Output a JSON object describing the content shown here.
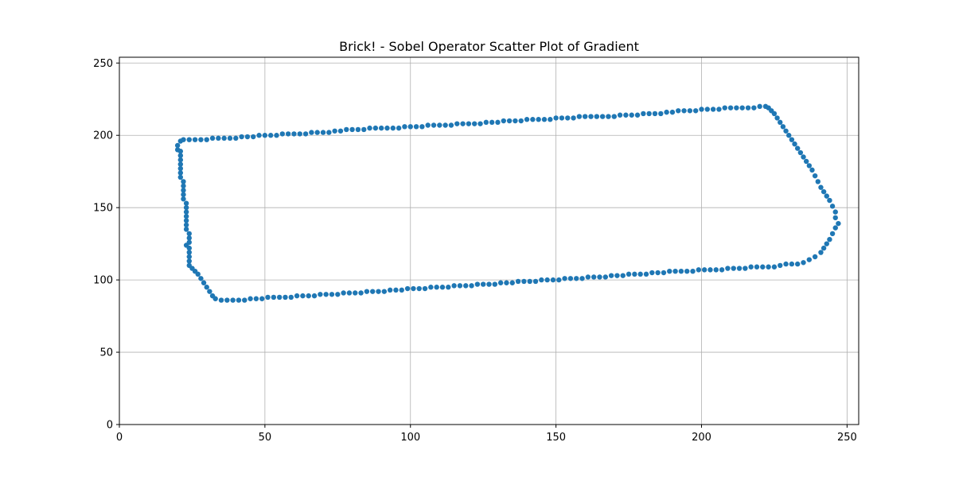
{
  "chart_data": {
    "type": "scatter",
    "title": "Brick! - Sobel Operator Scatter Plot of Gradient",
    "xlabel": "",
    "ylabel": "",
    "xlim": [
      0,
      254
    ],
    "ylim": [
      0,
      254
    ],
    "xticks": [
      0,
      50,
      100,
      150,
      200,
      250
    ],
    "yticks": [
      0,
      50,
      100,
      150,
      200,
      250
    ],
    "grid": true,
    "color": "#1f77b4",
    "series": [
      {
        "points": [
          [
            20,
            190
          ],
          [
            20,
            193
          ],
          [
            21,
            196
          ],
          [
            22,
            197
          ],
          [
            24,
            197
          ],
          [
            26,
            197
          ],
          [
            28,
            197
          ],
          [
            30,
            197
          ],
          [
            32,
            198
          ],
          [
            34,
            198
          ],
          [
            36,
            198
          ],
          [
            38,
            198
          ],
          [
            40,
            198
          ],
          [
            42,
            199
          ],
          [
            44,
            199
          ],
          [
            46,
            199
          ],
          [
            48,
            200
          ],
          [
            50,
            200
          ],
          [
            52,
            200
          ],
          [
            54,
            200
          ],
          [
            56,
            201
          ],
          [
            58,
            201
          ],
          [
            60,
            201
          ],
          [
            62,
            201
          ],
          [
            64,
            201
          ],
          [
            66,
            202
          ],
          [
            68,
            202
          ],
          [
            70,
            202
          ],
          [
            72,
            202
          ],
          [
            74,
            203
          ],
          [
            76,
            203
          ],
          [
            78,
            204
          ],
          [
            80,
            204
          ],
          [
            82,
            204
          ],
          [
            84,
            204
          ],
          [
            86,
            205
          ],
          [
            88,
            205
          ],
          [
            90,
            205
          ],
          [
            92,
            205
          ],
          [
            94,
            205
          ],
          [
            96,
            205
          ],
          [
            98,
            206
          ],
          [
            100,
            206
          ],
          [
            102,
            206
          ],
          [
            104,
            206
          ],
          [
            106,
            207
          ],
          [
            108,
            207
          ],
          [
            110,
            207
          ],
          [
            112,
            207
          ],
          [
            114,
            207
          ],
          [
            116,
            208
          ],
          [
            118,
            208
          ],
          [
            120,
            208
          ],
          [
            122,
            208
          ],
          [
            124,
            208
          ],
          [
            126,
            209
          ],
          [
            128,
            209
          ],
          [
            130,
            209
          ],
          [
            132,
            210
          ],
          [
            134,
            210
          ],
          [
            136,
            210
          ],
          [
            138,
            210
          ],
          [
            140,
            211
          ],
          [
            142,
            211
          ],
          [
            144,
            211
          ],
          [
            146,
            211
          ],
          [
            148,
            211
          ],
          [
            150,
            212
          ],
          [
            152,
            212
          ],
          [
            154,
            212
          ],
          [
            156,
            212
          ],
          [
            158,
            213
          ],
          [
            160,
            213
          ],
          [
            162,
            213
          ],
          [
            164,
            213
          ],
          [
            166,
            213
          ],
          [
            168,
            213
          ],
          [
            170,
            213
          ],
          [
            172,
            214
          ],
          [
            174,
            214
          ],
          [
            176,
            214
          ],
          [
            178,
            214
          ],
          [
            180,
            215
          ],
          [
            182,
            215
          ],
          [
            184,
            215
          ],
          [
            186,
            215
          ],
          [
            188,
            216
          ],
          [
            190,
            216
          ],
          [
            192,
            217
          ],
          [
            194,
            217
          ],
          [
            196,
            217
          ],
          [
            198,
            217
          ],
          [
            200,
            218
          ],
          [
            202,
            218
          ],
          [
            204,
            218
          ],
          [
            206,
            218
          ],
          [
            208,
            219
          ],
          [
            210,
            219
          ],
          [
            212,
            219
          ],
          [
            214,
            219
          ],
          [
            216,
            219
          ],
          [
            218,
            219
          ],
          [
            220,
            220
          ],
          [
            222,
            220
          ],
          [
            223,
            219
          ],
          [
            224,
            217
          ],
          [
            225,
            215
          ],
          [
            226,
            212
          ],
          [
            227,
            209
          ],
          [
            228,
            206
          ],
          [
            229,
            203
          ],
          [
            230,
            200
          ],
          [
            231,
            197
          ],
          [
            232,
            194
          ],
          [
            233,
            191
          ],
          [
            234,
            188
          ],
          [
            235,
            185
          ],
          [
            236,
            182
          ],
          [
            237,
            179
          ],
          [
            238,
            176
          ],
          [
            239,
            172
          ],
          [
            240,
            168
          ],
          [
            241,
            164
          ],
          [
            242,
            161
          ],
          [
            243,
            158
          ],
          [
            244,
            155
          ],
          [
            245,
            151
          ],
          [
            246,
            147
          ],
          [
            246,
            143
          ],
          [
            247,
            139
          ],
          [
            246,
            136
          ],
          [
            245,
            132
          ],
          [
            244,
            128
          ],
          [
            243,
            125
          ],
          [
            242,
            122
          ],
          [
            241,
            119
          ],
          [
            239,
            116
          ],
          [
            237,
            114
          ],
          [
            235,
            112
          ],
          [
            233,
            111
          ],
          [
            231,
            111
          ],
          [
            229,
            111
          ],
          [
            227,
            110
          ],
          [
            225,
            109
          ],
          [
            223,
            109
          ],
          [
            221,
            109
          ],
          [
            219,
            109
          ],
          [
            217,
            109
          ],
          [
            215,
            108
          ],
          [
            213,
            108
          ],
          [
            211,
            108
          ],
          [
            209,
            108
          ],
          [
            207,
            107
          ],
          [
            205,
            107
          ],
          [
            203,
            107
          ],
          [
            201,
            107
          ],
          [
            199,
            107
          ],
          [
            197,
            106
          ],
          [
            195,
            106
          ],
          [
            193,
            106
          ],
          [
            191,
            106
          ],
          [
            189,
            106
          ],
          [
            187,
            105
          ],
          [
            185,
            105
          ],
          [
            183,
            105
          ],
          [
            181,
            104
          ],
          [
            179,
            104
          ],
          [
            177,
            104
          ],
          [
            175,
            104
          ],
          [
            173,
            103
          ],
          [
            171,
            103
          ],
          [
            169,
            103
          ],
          [
            167,
            102
          ],
          [
            165,
            102
          ],
          [
            163,
            102
          ],
          [
            161,
            102
          ],
          [
            159,
            101
          ],
          [
            157,
            101
          ],
          [
            155,
            101
          ],
          [
            153,
            101
          ],
          [
            151,
            100
          ],
          [
            149,
            100
          ],
          [
            147,
            100
          ],
          [
            145,
            100
          ],
          [
            143,
            99
          ],
          [
            141,
            99
          ],
          [
            139,
            99
          ],
          [
            137,
            99
          ],
          [
            135,
            98
          ],
          [
            133,
            98
          ],
          [
            131,
            98
          ],
          [
            129,
            97
          ],
          [
            127,
            97
          ],
          [
            125,
            97
          ],
          [
            123,
            97
          ],
          [
            121,
            96
          ],
          [
            119,
            96
          ],
          [
            117,
            96
          ],
          [
            115,
            96
          ],
          [
            113,
            95
          ],
          [
            111,
            95
          ],
          [
            109,
            95
          ],
          [
            107,
            95
          ],
          [
            105,
            94
          ],
          [
            103,
            94
          ],
          [
            101,
            94
          ],
          [
            99,
            94
          ],
          [
            97,
            93
          ],
          [
            95,
            93
          ],
          [
            93,
            93
          ],
          [
            91,
            92
          ],
          [
            89,
            92
          ],
          [
            87,
            92
          ],
          [
            85,
            92
          ],
          [
            83,
            91
          ],
          [
            81,
            91
          ],
          [
            79,
            91
          ],
          [
            77,
            91
          ],
          [
            75,
            90
          ],
          [
            73,
            90
          ],
          [
            71,
            90
          ],
          [
            69,
            90
          ],
          [
            67,
            89
          ],
          [
            65,
            89
          ],
          [
            63,
            89
          ],
          [
            61,
            89
          ],
          [
            59,
            88
          ],
          [
            57,
            88
          ],
          [
            55,
            88
          ],
          [
            53,
            88
          ],
          [
            51,
            88
          ],
          [
            49,
            87
          ],
          [
            47,
            87
          ],
          [
            45,
            87
          ],
          [
            43,
            86
          ],
          [
            41,
            86
          ],
          [
            39,
            86
          ],
          [
            37,
            86
          ],
          [
            35,
            86
          ],
          [
            33,
            87
          ],
          [
            32,
            89
          ],
          [
            31,
            92
          ],
          [
            30,
            95
          ],
          [
            29,
            98
          ],
          [
            28,
            101
          ],
          [
            27,
            104
          ],
          [
            26,
            106
          ],
          [
            25,
            108
          ],
          [
            24,
            110
          ],
          [
            24,
            113
          ],
          [
            24,
            116
          ],
          [
            24,
            119
          ],
          [
            24,
            122
          ],
          [
            23,
            124
          ],
          [
            24,
            126
          ],
          [
            24,
            129
          ],
          [
            24,
            132
          ],
          [
            23,
            135
          ],
          [
            23,
            138
          ],
          [
            23,
            141
          ],
          [
            23,
            144
          ],
          [
            23,
            147
          ],
          [
            23,
            150
          ],
          [
            23,
            153
          ],
          [
            22,
            156
          ],
          [
            22,
            159
          ],
          [
            22,
            162
          ],
          [
            22,
            165
          ],
          [
            22,
            168
          ],
          [
            21,
            171
          ],
          [
            21,
            174
          ],
          [
            21,
            177
          ],
          [
            21,
            180
          ],
          [
            21,
            183
          ],
          [
            21,
            186
          ],
          [
            21,
            189
          ]
        ]
      }
    ]
  }
}
